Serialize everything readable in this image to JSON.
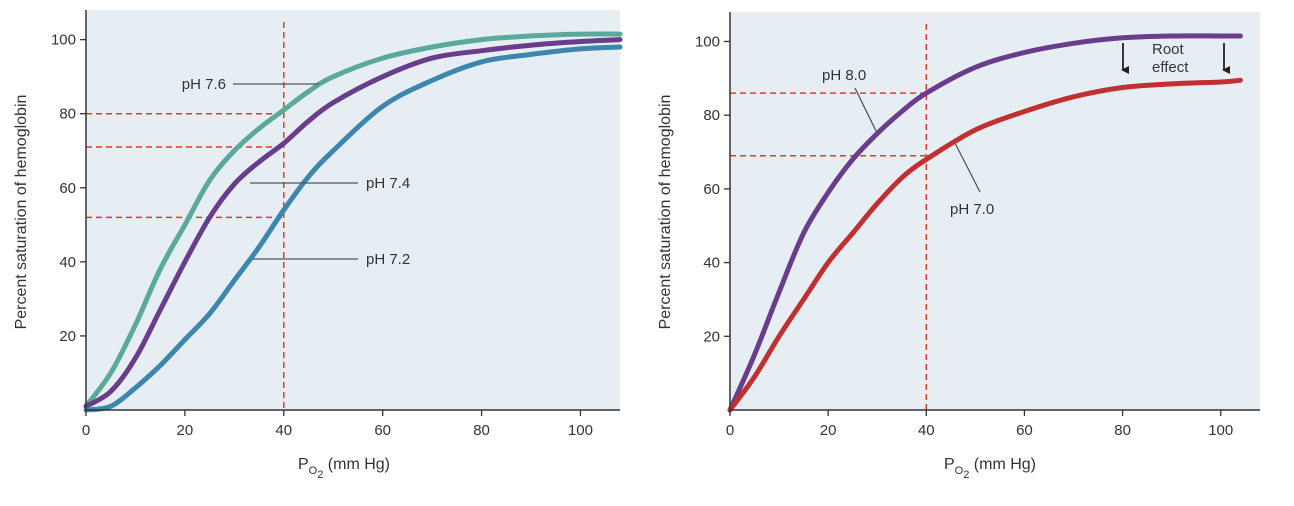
{
  "chart_data": [
    {
      "type": "line",
      "xlabel": {
        "base": "P",
        "sub": "O",
        "sub2": "2",
        "rest": " (mm Hg)"
      },
      "ylabel": "Percent saturation of hemoglobin",
      "xlim": [
        0,
        108
      ],
      "ylim": [
        0,
        108
      ],
      "xticks": [
        0,
        20,
        40,
        60,
        80,
        100
      ],
      "yticks": [
        20,
        40,
        60,
        80,
        100
      ],
      "background": "#e6eef4",
      "series": [
        {
          "name": "pH 7.6",
          "color": "#5aa99b",
          "x": [
            0,
            5,
            10,
            15,
            20,
            25,
            30,
            35,
            40,
            45,
            50,
            60,
            70,
            80,
            90,
            100,
            108
          ],
          "y": [
            1,
            10,
            23,
            38,
            50,
            62,
            70,
            76,
            81,
            86,
            90,
            95,
            98,
            100,
            101,
            101.5,
            101.5
          ]
        },
        {
          "name": "pH 7.4",
          "color": "#6a3c8c",
          "x": [
            0,
            5,
            10,
            15,
            20,
            25,
            30,
            35,
            40,
            45,
            50,
            60,
            70,
            80,
            90,
            100,
            108
          ],
          "y": [
            1,
            5,
            14,
            27,
            40,
            52,
            61,
            67,
            72,
            78,
            83,
            90,
            95,
            97,
            98.5,
            99.5,
            100
          ]
        },
        {
          "name": "pH 7.2",
          "color": "#3d86ad",
          "x": [
            0,
            5,
            10,
            15,
            20,
            25,
            30,
            35,
            40,
            45,
            50,
            60,
            70,
            80,
            90,
            100,
            108
          ],
          "y": [
            0,
            1,
            6,
            12,
            19,
            26,
            35,
            44,
            54,
            63,
            70,
            82,
            89,
            94,
            96,
            97.5,
            98
          ]
        }
      ],
      "labels": [
        {
          "text": "pH 7.6",
          "series": 0
        },
        {
          "text": "pH 7.4",
          "series": 1
        },
        {
          "text": "pH 7.2",
          "series": 2
        }
      ],
      "reference_lines": {
        "x": 40,
        "y": [
          80,
          71,
          52
        ],
        "color": "#e23b2a"
      }
    },
    {
      "type": "line",
      "xlabel": {
        "base": "P",
        "sub": "O",
        "sub2": "2",
        "rest": " (mm Hg)"
      },
      "ylabel": "Percent saturation of hemoglobin",
      "xlim": [
        0,
        108
      ],
      "ylim": [
        0,
        108
      ],
      "xticks": [
        0,
        20,
        40,
        60,
        80,
        100
      ],
      "yticks": [
        20,
        40,
        60,
        80,
        100
      ],
      "background": "#e6eef4",
      "series": [
        {
          "name": "pH 8.0",
          "color": "#6a3c8c",
          "x": [
            0,
            5,
            10,
            15,
            20,
            25,
            30,
            35,
            40,
            50,
            60,
            70,
            80,
            90,
            100,
            104
          ],
          "y": [
            0,
            15,
            32,
            48,
            59,
            68,
            75,
            81,
            86,
            93,
            97,
            99.5,
            101,
            101.5,
            101.5,
            101.5
          ]
        },
        {
          "name": "pH 7.0",
          "color": "#c03030",
          "x": [
            0,
            5,
            10,
            15,
            20,
            25,
            30,
            35,
            40,
            50,
            60,
            70,
            80,
            90,
            100,
            104
          ],
          "y": [
            0,
            9,
            20,
            30,
            40,
            48,
            56,
            63,
            68,
            76,
            81,
            85,
            87.5,
            88.5,
            89,
            89.5
          ]
        }
      ],
      "labels": [
        {
          "text": "pH 8.0",
          "series": 0
        },
        {
          "text": "pH 7.0",
          "series": 1
        }
      ],
      "reference_lines": {
        "x": 40,
        "y": [
          86,
          69
        ],
        "color": "#e23b2a"
      },
      "annotation": {
        "line1": "Root",
        "line2": "effect",
        "arrows_x": [
          80,
          101
        ]
      }
    }
  ]
}
